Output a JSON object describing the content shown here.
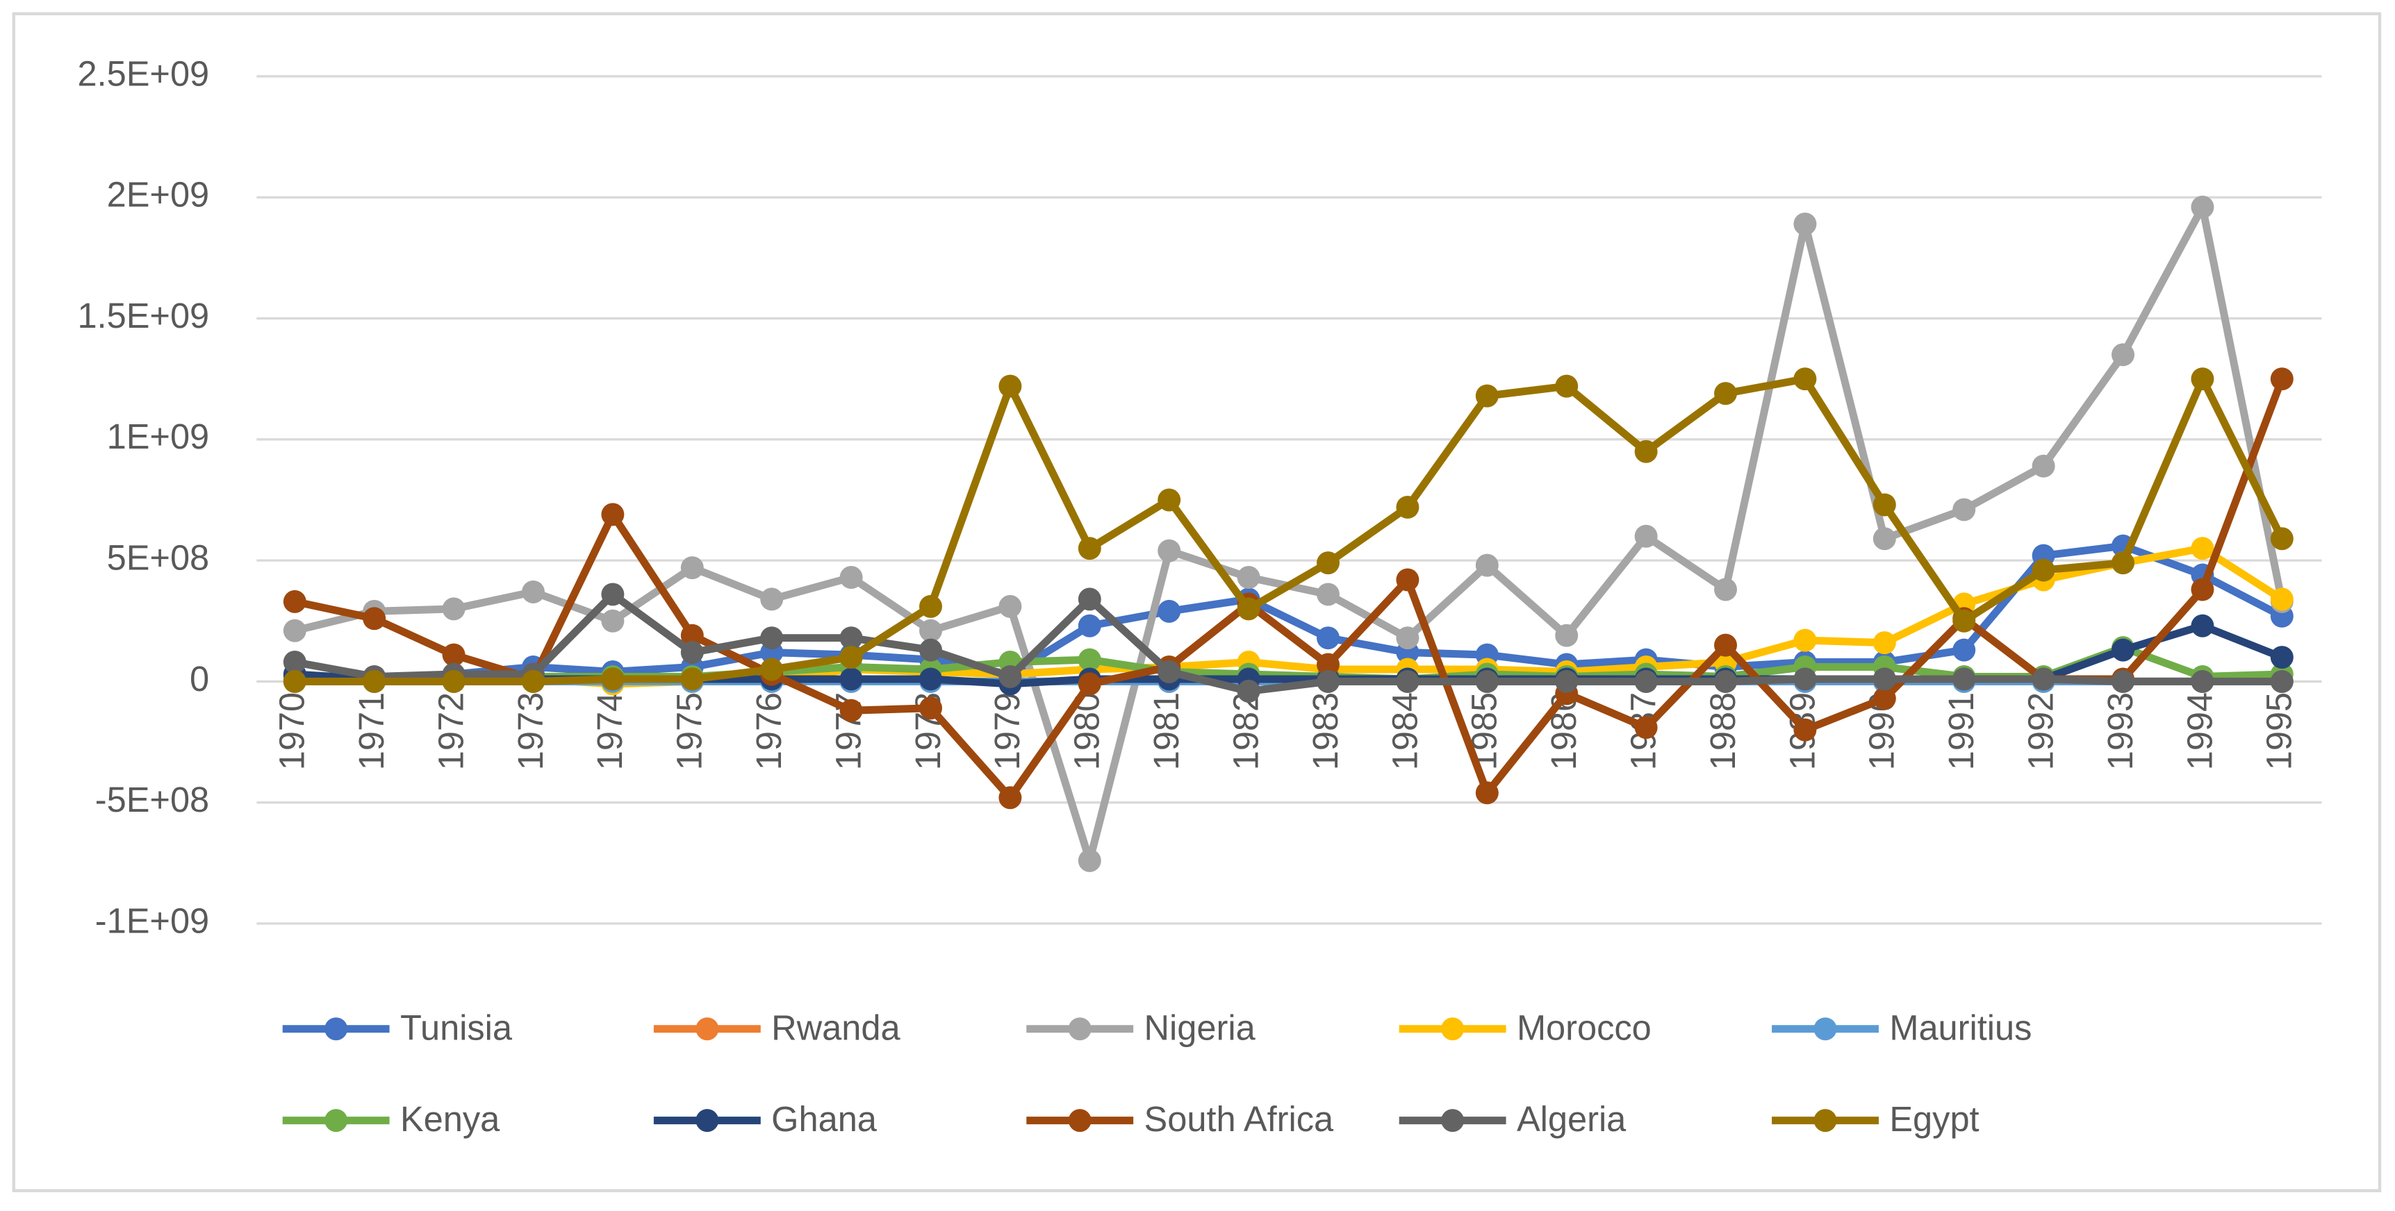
{
  "chart_data": {
    "type": "line",
    "categories": [
      "1970",
      "1971",
      "1972",
      "1973",
      "1974",
      "1975",
      "1976",
      "1977",
      "1978",
      "1979",
      "1980",
      "1981",
      "1982",
      "1983",
      "1984",
      "1985",
      "1986",
      "1987",
      "1988",
      "1989",
      "1990",
      "1991",
      "1992",
      "1993",
      "1994",
      "1995"
    ],
    "ylim": [
      -1000000000,
      2500000000
    ],
    "yticks": [
      {
        "value": -1000000000,
        "label": "-1E+09"
      },
      {
        "value": -500000000,
        "label": "-5E+08"
      },
      0,
      {
        "value": 500000000,
        "label": "5E+08"
      },
      {
        "value": 1000000000,
        "label": "1E+09"
      },
      {
        "value": 1500000000,
        "label": "1.5E+09"
      },
      {
        "value": 2000000000,
        "label": "2E+09"
      },
      {
        "value": 2500000000,
        "label": "2.5E+09"
      }
    ],
    "grid": true,
    "legend": "bottom",
    "series": [
      {
        "name": "Tunisia",
        "color": "#4472c4",
        "values": [
          20000000,
          10000000,
          30000000,
          60000000,
          40000000,
          60000000,
          120000000,
          110000000,
          90000000,
          30000000,
          230000000,
          290000000,
          340000000,
          180000000,
          120000000,
          110000000,
          70000000,
          90000000,
          60000000,
          80000000,
          80000000,
          130000000,
          520000000,
          560000000,
          440000000,
          270000000
        ]
      },
      {
        "name": "Rwanda",
        "color": "#ed7d31",
        "values": [
          0,
          0,
          0,
          0,
          0,
          0,
          0,
          0,
          0,
          0,
          0,
          0,
          0,
          0,
          0,
          0,
          0,
          0,
          0,
          0,
          0,
          0,
          0,
          0,
          0,
          0
        ]
      },
      {
        "name": "Nigeria",
        "color": "#a5a5a5",
        "values": [
          210000000,
          290000000,
          300000000,
          370000000,
          250000000,
          470000000,
          340000000,
          430000000,
          210000000,
          310000000,
          -740000000,
          540000000,
          430000000,
          360000000,
          180000000,
          480000000,
          190000000,
          600000000,
          380000000,
          1890000000,
          590000000,
          710000000,
          890000000,
          1350000000,
          1960000000,
          330000000
        ]
      },
      {
        "name": "Morocco",
        "color": "#ffc000",
        "values": [
          0,
          0,
          0,
          10000000,
          -10000000,
          0,
          10000000,
          50000000,
          40000000,
          30000000,
          50000000,
          60000000,
          80000000,
          50000000,
          50000000,
          50000000,
          40000000,
          60000000,
          80000000,
          170000000,
          160000000,
          320000000,
          420000000,
          490000000,
          550000000,
          340000000
        ]
      },
      {
        "name": "Mauritius",
        "color": "#5b9bd5",
        "values": [
          0,
          0,
          0,
          0,
          0,
          0,
          0,
          0,
          0,
          0,
          0,
          0,
          0,
          0,
          0,
          0,
          0,
          0,
          0,
          0,
          0,
          0,
          0,
          0,
          0,
          0
        ]
      },
      {
        "name": "Kenya",
        "color": "#70ad47",
        "values": [
          10000000,
          10000000,
          10000000,
          20000000,
          20000000,
          20000000,
          40000000,
          60000000,
          50000000,
          80000000,
          90000000,
          40000000,
          30000000,
          20000000,
          10000000,
          30000000,
          20000000,
          30000000,
          20000000,
          60000000,
          60000000,
          20000000,
          20000000,
          140000000,
          20000000,
          30000000
        ]
      },
      {
        "name": "Ghana",
        "color": "#264478",
        "values": [
          30000000,
          10000000,
          10000000,
          10000000,
          10000000,
          10000000,
          10000000,
          10000000,
          10000000,
          -10000000,
          10000000,
          10000000,
          10000000,
          10000000,
          10000000,
          10000000,
          10000000,
          10000000,
          10000000,
          10000000,
          10000000,
          10000000,
          10000000,
          130000000,
          230000000,
          100000000
        ]
      },
      {
        "name": "South Africa",
        "color": "#9e480e",
        "values": [
          330000000,
          260000000,
          110000000,
          10000000,
          690000000,
          190000000,
          30000000,
          -120000000,
          -110000000,
          -480000000,
          -10000000,
          60000000,
          320000000,
          70000000,
          420000000,
          -460000000,
          -50000000,
          -190000000,
          150000000,
          -200000000,
          -70000000,
          260000000,
          10000000,
          10000000,
          380000000,
          1250000000
        ]
      },
      {
        "name": "Algeria",
        "color": "#636363",
        "values": [
          80000000,
          20000000,
          30000000,
          30000000,
          360000000,
          120000000,
          180000000,
          180000000,
          130000000,
          20000000,
          340000000,
          40000000,
          -40000000,
          0,
          0,
          0,
          0,
          0,
          0,
          10000000,
          10000000,
          10000000,
          10000000,
          0,
          0,
          0
        ]
      },
      {
        "name": "Egypt",
        "color": "#997300",
        "values": [
          0,
          0,
          0,
          0,
          10000000,
          10000000,
          50000000,
          100000000,
          310000000,
          1220000000,
          550000000,
          750000000,
          300000000,
          490000000,
          720000000,
          1180000000,
          1220000000,
          950000000,
          1190000000,
          1250000000,
          730000000,
          250000000,
          460000000,
          490000000,
          1250000000,
          590000000
        ]
      }
    ]
  }
}
